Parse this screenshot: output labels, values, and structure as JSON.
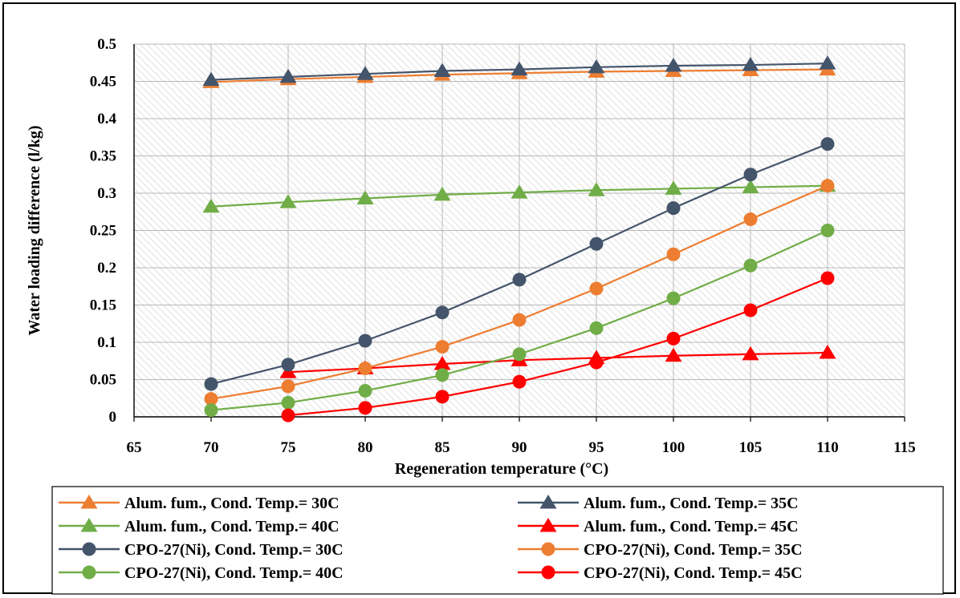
{
  "chart_data": {
    "type": "line",
    "title": "",
    "xlabel": "Regeneration temperature (°C)",
    "ylabel": "Water loading difference (l/kg)",
    "xlim": [
      65,
      115
    ],
    "ylim": [
      0,
      0.5
    ],
    "x_ticks": [
      "65",
      "70",
      "75",
      "80",
      "85",
      "90",
      "95",
      "100",
      "105",
      "110",
      "115"
    ],
    "y_ticks": [
      "0",
      "0.05",
      "0.1",
      "0.15",
      "0.2",
      "0.25",
      "0.3",
      "0.35",
      "0.4",
      "0.45",
      "0.5"
    ],
    "grid": true,
    "legend_position": "bottom",
    "series": [
      {
        "name": "Alum. fum., Cond. Temp.= 30C",
        "color": "#ED7D31",
        "marker": "triangle",
        "x": [
          70,
          75,
          80,
          85,
          90,
          95,
          100,
          105,
          110
        ],
        "y": [
          0.449,
          0.453,
          0.456,
          0.459,
          0.461,
          0.463,
          0.464,
          0.465,
          0.466
        ]
      },
      {
        "name": "Alum. fum., Cond. Temp.= 35C",
        "color": "#44546A",
        "marker": "triangle",
        "x": [
          70,
          75,
          80,
          85,
          90,
          95,
          100,
          105,
          110
        ],
        "y": [
          0.452,
          0.456,
          0.46,
          0.464,
          0.466,
          0.469,
          0.471,
          0.472,
          0.474
        ]
      },
      {
        "name": "Alum. fum., Cond. Temp.= 40C",
        "color": "#70AD47",
        "marker": "triangle",
        "x": [
          70,
          75,
          80,
          85,
          90,
          95,
          100,
          105,
          110
        ],
        "y": [
          0.282,
          0.288,
          0.293,
          0.298,
          0.301,
          0.304,
          0.306,
          0.308,
          0.31
        ]
      },
      {
        "name": "Alum. fum., Cond. Temp.= 45C",
        "color": "#FF0000",
        "marker": "triangle",
        "x": [
          75,
          80,
          85,
          90,
          95,
          100,
          105,
          110
        ],
        "y": [
          0.06,
          0.065,
          0.071,
          0.076,
          0.079,
          0.082,
          0.084,
          0.086
        ]
      },
      {
        "name": "CPO-27(Ni), Cond. Temp.= 30C",
        "color": "#44546A",
        "marker": "circle",
        "x": [
          70,
          75,
          80,
          85,
          90,
          95,
          100,
          105,
          110
        ],
        "y": [
          0.044,
          0.07,
          0.102,
          0.14,
          0.184,
          0.232,
          0.28,
          0.325,
          0.366
        ]
      },
      {
        "name": "CPO-27(Ni), Cond. Temp.= 35C",
        "color": "#ED7D31",
        "marker": "circle",
        "x": [
          70,
          75,
          80,
          85,
          90,
          95,
          100,
          105,
          110
        ],
        "y": [
          0.024,
          0.041,
          0.065,
          0.094,
          0.13,
          0.172,
          0.218,
          0.265,
          0.31
        ]
      },
      {
        "name": "CPO-27(Ni), Cond. Temp.= 40C",
        "color": "#70AD47",
        "marker": "circle",
        "x": [
          70,
          75,
          80,
          85,
          90,
          95,
          100,
          105,
          110
        ],
        "y": [
          0.009,
          0.019,
          0.035,
          0.056,
          0.084,
          0.119,
          0.159,
          0.203,
          0.25
        ]
      },
      {
        "name": "CPO-27(Ni), Cond. Temp.= 45C",
        "color": "#FF0000",
        "marker": "circle",
        "x": [
          75,
          80,
          85,
          90,
          95,
          100,
          105,
          110
        ],
        "y": [
          0.002,
          0.012,
          0.027,
          0.047,
          0.073,
          0.105,
          0.143,
          0.186
        ]
      }
    ]
  }
}
